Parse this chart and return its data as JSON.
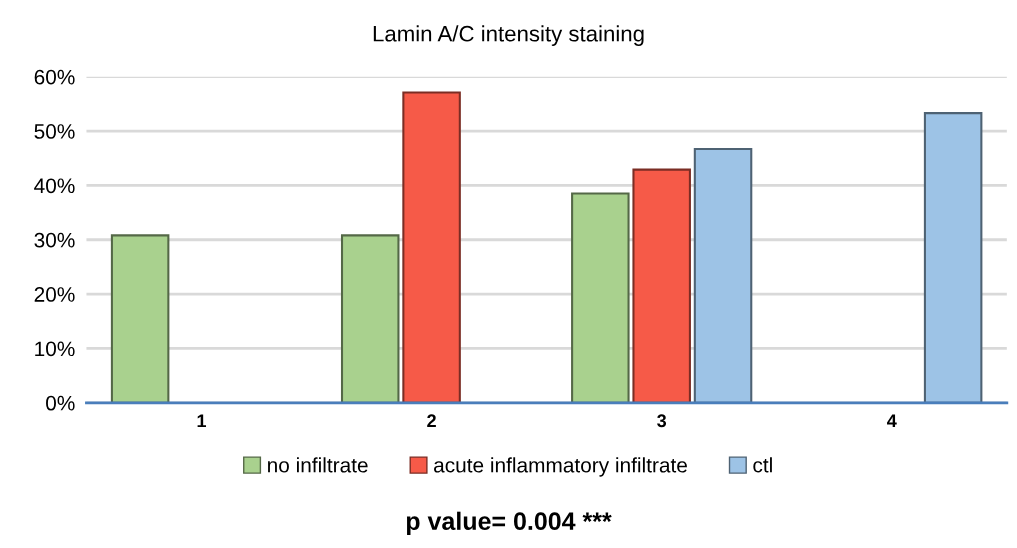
{
  "chart_data": {
    "type": "bar",
    "title": "Lamin A/C intensity staining",
    "categories": [
      "1",
      "2",
      "3",
      "4"
    ],
    "series": [
      {
        "name": "no infiltrate",
        "color": "#a9d18e",
        "values": [
          30.8,
          30.8,
          38.5,
          null
        ]
      },
      {
        "name": "acute inflammatory infiltrate",
        "color": "#f65a48",
        "values": [
          null,
          57.1,
          42.9,
          null
        ]
      },
      {
        "name": "ctl",
        "color": "#9dc3e6",
        "values": [
          null,
          null,
          46.7,
          53.3
        ]
      }
    ],
    "ylim": [
      0,
      60
    ],
    "yticks": [
      {
        "value": 0,
        "label": "0%"
      },
      {
        "value": 10,
        "label": "10%"
      },
      {
        "value": 20,
        "label": "20%"
      },
      {
        "value": 30,
        "label": "30%"
      },
      {
        "value": 40,
        "label": "40%"
      },
      {
        "value": 50,
        "label": "50%"
      },
      {
        "value": 60,
        "label": "60%"
      }
    ],
    "grid": "y",
    "legend": "bottom",
    "annotations": [
      "p value= 0.004 ***"
    ]
  }
}
